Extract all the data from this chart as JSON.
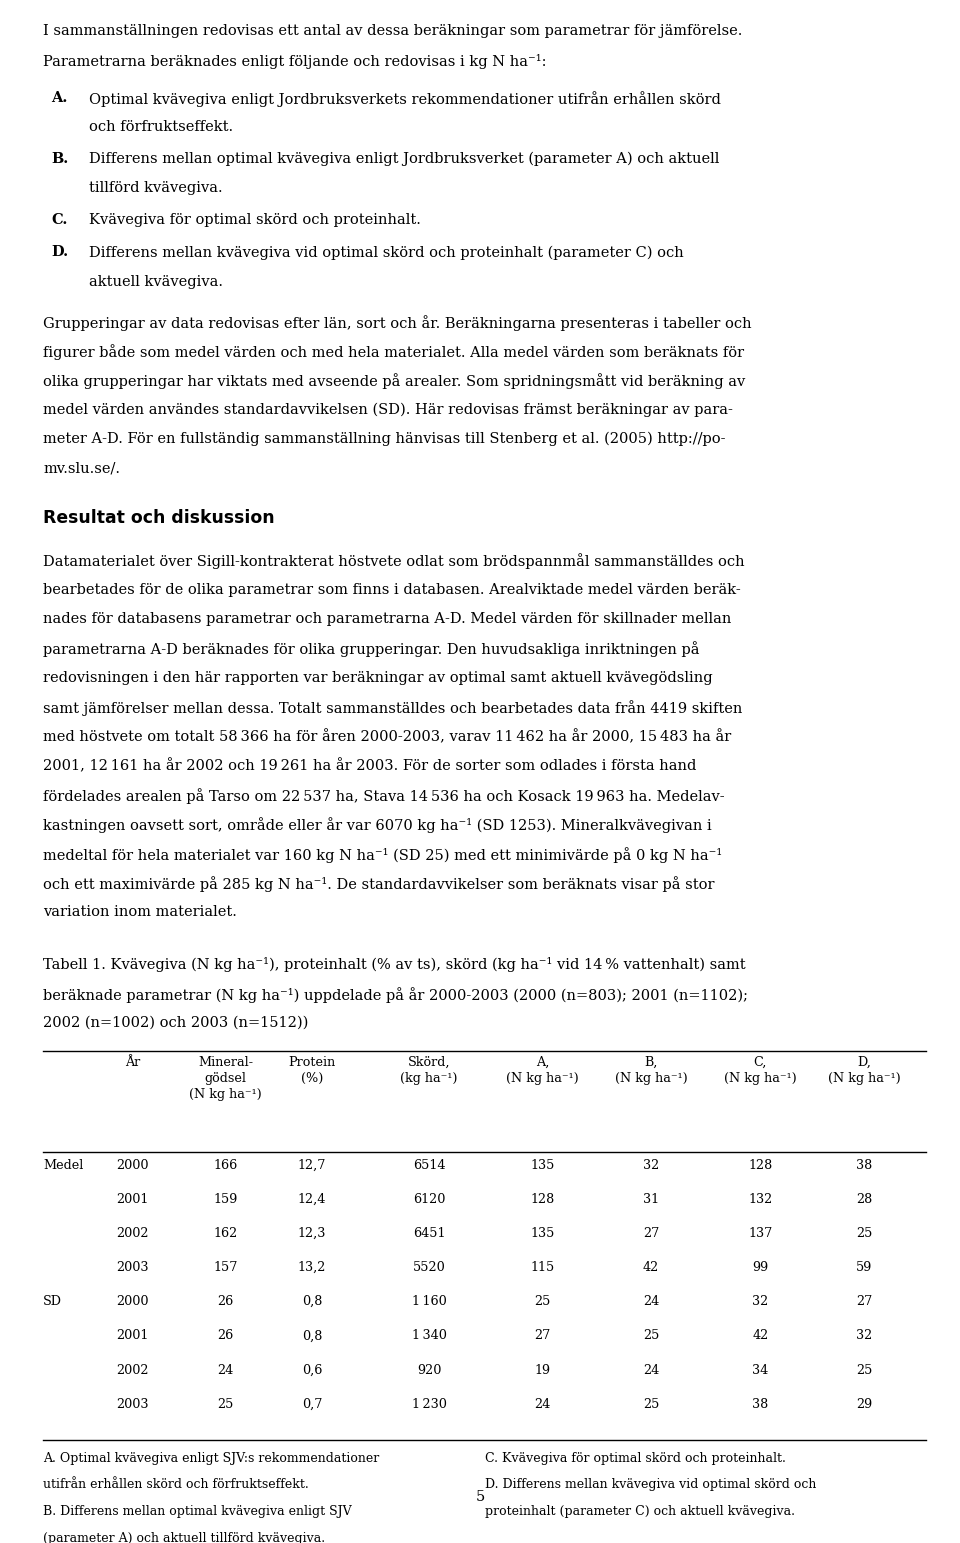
{
  "background_color": "#ffffff",
  "page_number": "5",
  "intro_lines": [
    "I sammanställningen redovisas ett antal av dessa beräkningar som parametrar för jämförelse.",
    "Parametrarna beräknades enligt följande och redovisas i kg N ha⁻¹:"
  ],
  "list_A_line1": "Optimal kvävegiva enligt Jordbruksverkets rekommendationer utifrån erhållen skörd",
  "list_A_line2": "och förfruktseffekt.",
  "list_B_line1": "Differens mellan optimal kvävegiva enligt Jordbruksverket (parameter A) och aktuell",
  "list_B_line2": "tillförd kvävegiva.",
  "list_C_line1": "Kvävegiva för optimal skörd och proteinhalt.",
  "list_D_line1": "Differens mellan kvävegiva vid optimal skörd och proteinhalt (parameter C) och",
  "list_D_line2": "aktuell kvävegiva.",
  "para1_lines": [
    "Grupperingar av data redovisas efter län, sort och år. Beräkningarna presenteras i tabeller och",
    "figurer både som medel värden och med hela materialet. Alla medel värden som beräknats för",
    "olika grupperingar har viktats med avseende på arealer. Som spridningsmått vid beräkning av",
    "medel värden användes standardavvikelsen (SD). Här redovisas främst beräkningar av para-",
    "meter A-D. För en fullständig sammanställning hänvisas till Stenberg et al. (2005) http://po-",
    "mv.slu.se/."
  ],
  "section_heading": "Resultat och diskussion",
  "para2_lines": [
    "Datamaterialet över Sigill-kontrakterat höstvete odlat som brödspannmål sammanställdes och",
    "bearbetades för de olika parametrar som finns i databasen. Arealviktade medel värden beräk-",
    "nades för databasens parametrar och parametrarna A-D. Medel värden för skillnader mellan",
    "parametrarna A-D beräknades för olika grupperingar. Den huvudsakliga inriktningen på",
    "redovisningen i den här rapporten var beräkningar av optimal samt aktuell kvävegödsling",
    "samt jämförelser mellan dessa. Totalt sammanställdes och bearbetades data från 4419 skiften",
    "med höstvete om totalt 58 366 ha för åren 2000-2003, varav 11 462 ha år 2000, 15 483 ha år",
    "2001, 12 161 ha år 2002 och 19 261 ha år 2003. För de sorter som odlades i första hand",
    "fördelades arealen på Tarso om 22 537 ha, Stava 14 536 ha och Kosack 19 963 ha. Medelav-",
    "kastningen oavsett sort, område eller år var 6070 kg ha⁻¹ (SD 1253). Mineralkvävegivan i",
    "medeltal för hela materialet var 160 kg N ha⁻¹ (SD 25) med ett minimivärde på 0 kg N ha⁻¹",
    "och ett maximivärde på 285 kg N ha⁻¹. De standardavvikelser som beräknats visar på stor",
    "variation inom materialet."
  ],
  "caption_lines": [
    "Tabell 1. Kvävegiva (N kg ha⁻¹), proteinhalt (% av ts), skörd (kg ha⁻¹ vid 14 % vattenhalt) samt",
    "beräknade parametrar (N kg ha⁻¹) uppdelade på år 2000-2003 (2000 (n=803); 2001 (n=1102);",
    "2002 (n=1002) och 2003 (n=1512))"
  ],
  "table_headers": [
    "År",
    "Mineral-\ngödsel\n(N kg ha⁻¹)",
    "Protein\n(%)",
    "Skörd,\n(kg ha⁻¹)",
    "A,\n(N kg ha⁻¹)",
    "B,\n(N kg ha⁻¹)",
    "C,\n(N kg ha⁻¹)",
    "D,\n(N kg ha⁻¹)"
  ],
  "table_row_labels": [
    "Medel",
    "",
    "",
    "",
    "SD",
    "",
    "",
    ""
  ],
  "table_data": [
    [
      "2000",
      "166",
      "12,7",
      "6514",
      "135",
      "32",
      "128",
      "38"
    ],
    [
      "2001",
      "159",
      "12,4",
      "6120",
      "128",
      "31",
      "132",
      "28"
    ],
    [
      "2002",
      "162",
      "12,3",
      "6451",
      "135",
      "27",
      "137",
      "25"
    ],
    [
      "2003",
      "157",
      "13,2",
      "5520",
      "115",
      "42",
      "99",
      "59"
    ],
    [
      "2000",
      "26",
      "0,8",
      "1 160",
      "25",
      "24",
      "32",
      "27"
    ],
    [
      "2001",
      "26",
      "0,8",
      "1 340",
      "27",
      "25",
      "42",
      "32"
    ],
    [
      "2002",
      "24",
      "0,6",
      "920",
      "19",
      "24",
      "34",
      "25"
    ],
    [
      "2003",
      "25",
      "0,7",
      "1 230",
      "24",
      "25",
      "38",
      "29"
    ]
  ],
  "footnotes_left": [
    "A. Optimal kvävegiva enligt SJV:s rekommendationer",
    "utifrån erhållen skörd och förfruktseffekt.",
    "B. Differens mellan optimal kvävegiva enligt SJV",
    "(parameter A) och aktuell tillförd kvävegiva."
  ],
  "footnotes_right": [
    "C. Kvävegiva för optimal skörd och proteinhalt.",
    "D. Differens mellan kvävegiva vid optimal skörd och",
    "proteinhalt (parameter C) och aktuell kvävegiva."
  ]
}
